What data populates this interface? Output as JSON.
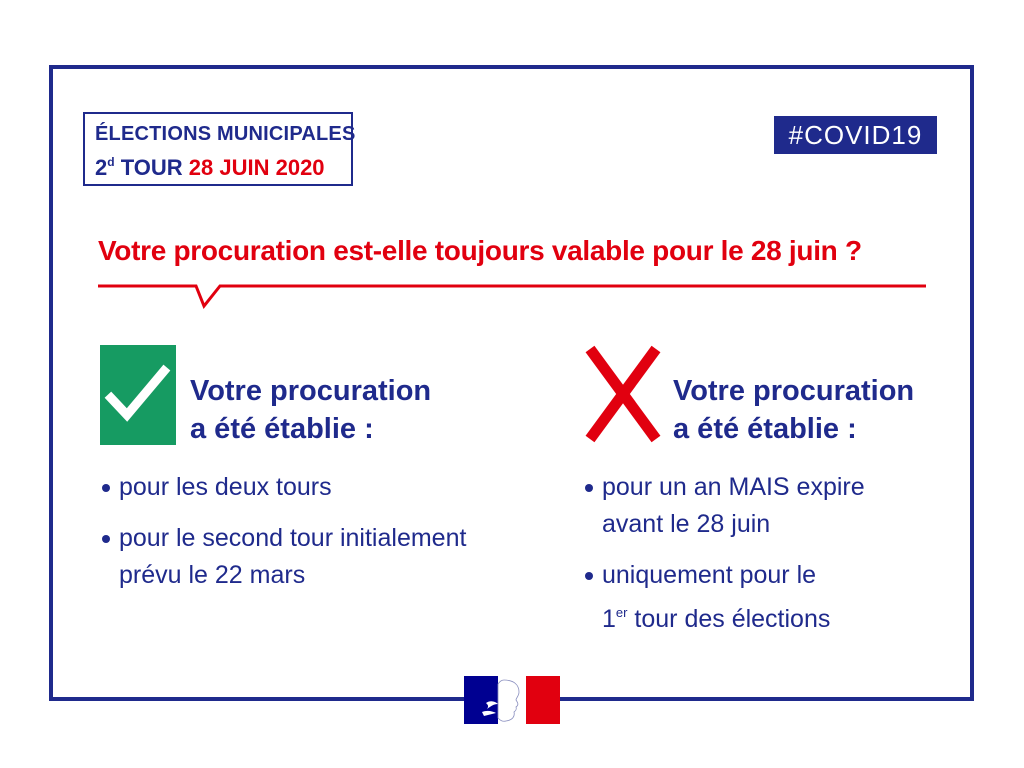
{
  "badge": {
    "line1": "ÉLECTIONS MUNICIPALES",
    "round_number": "2",
    "round_suffix": "d",
    "round_label": "TOUR",
    "date": "28 JUIN 2020"
  },
  "hashtag": "#COVID19",
  "headline": "Votre procuration est-elle toujours valable pour le 28 juin ?",
  "colors": {
    "navy": "#1f2a8c",
    "red": "#e1000f",
    "green": "#169b62"
  },
  "valid": {
    "icon": "check-icon",
    "title_line1": "Votre procuration",
    "title_line2": "a été établie :",
    "items": [
      {
        "text": "pour les deux tours"
      },
      {
        "line1": "pour le second tour initialement",
        "line2": "prévu le 22 mars"
      }
    ]
  },
  "invalid": {
    "icon": "cross-icon",
    "title_line1": "Votre procuration",
    "title_line2": "a été établie :",
    "items": [
      {
        "line1": "pour un an MAIS expire",
        "line2": "avant le 28 juin"
      },
      {
        "line1": "uniquement pour le",
        "line2_num": "1",
        "line2_sup": "er",
        "line2_rest": " tour des élections"
      }
    ]
  },
  "logo": {
    "icon": "marianne-logo"
  }
}
